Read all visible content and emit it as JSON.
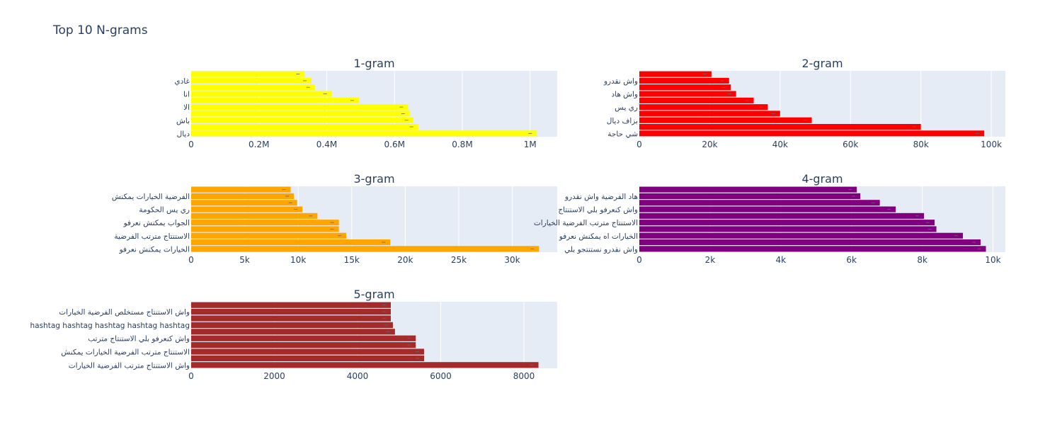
{
  "title": "Top 10 N-grams",
  "chart_data": [
    {
      "type": "bar",
      "orientation": "horizontal",
      "title": "1-gram",
      "color": "#ffff00",
      "categories": [
        "ديال",
        "",
        "باش",
        "",
        "الا",
        "",
        "انا",
        "",
        "غادي",
        ""
      ],
      "values": [
        1020000,
        670000,
        655000,
        645000,
        640000,
        495000,
        415000,
        365000,
        355000,
        335000
      ],
      "xlim": [
        0,
        1080000
      ],
      "xticks": [
        0,
        200000,
        400000,
        600000,
        800000,
        1000000
      ],
      "xtick_labels": [
        "0",
        "0.2M",
        "0.4M",
        "0.6M",
        "0.8M",
        "1M"
      ]
    },
    {
      "type": "bar",
      "orientation": "horizontal",
      "title": "2-gram",
      "color": "#ff0000",
      "categories": [
        "شي حاجة",
        "",
        "بزاف ديال",
        "",
        "ري يس",
        "",
        "واش هاد",
        "",
        "واش نقدرو",
        ""
      ],
      "values": [
        98000,
        80000,
        49000,
        40000,
        36500,
        32500,
        27500,
        26000,
        25500,
        20500
      ],
      "xlim": [
        0,
        104000
      ],
      "xticks": [
        0,
        20000,
        40000,
        60000,
        80000,
        100000
      ],
      "xtick_labels": [
        "0",
        "20k",
        "40k",
        "60k",
        "80k",
        "100k"
      ]
    },
    {
      "type": "bar",
      "orientation": "horizontal",
      "title": "3-gram",
      "color": "#ffa500",
      "categories": [
        "الخيارات يمكنش نعرفو",
        "",
        "الاستنتاج مترتب الفرضية",
        "",
        "الجواب يمكنش نعرفو",
        "",
        "ري يس الحكومة",
        "",
        "الفرضية الخيارات يمكنش",
        ""
      ],
      "values": [
        32500,
        18600,
        14500,
        13800,
        13800,
        11800,
        10400,
        9900,
        9600,
        9300
      ],
      "xlim": [
        0,
        34200
      ],
      "xticks": [
        0,
        5000,
        10000,
        15000,
        20000,
        25000,
        30000
      ],
      "xtick_labels": [
        "0",
        "5k",
        "10k",
        "15k",
        "20k",
        "25k",
        "30k"
      ]
    },
    {
      "type": "bar",
      "orientation": "horizontal",
      "title": "4-gram",
      "color": "#800080",
      "categories": [
        "واش نقدرو نستنتجو بلي",
        "",
        "الخيارات اه يمكنش نعرفو",
        "",
        "الاستنتاج مترتب الفرضية الخيارات",
        "",
        "واش كنعرفو بلي الاستنتاج",
        "",
        "هاد الفرضية واش نقدرو",
        ""
      ],
      "values": [
        9800,
        9650,
        9150,
        8400,
        8350,
        8050,
        7250,
        6800,
        6250,
        6150
      ],
      "xlim": [
        0,
        10350
      ],
      "xticks": [
        0,
        2000,
        4000,
        6000,
        8000,
        10000
      ],
      "xtick_labels": [
        "0",
        "2k",
        "4k",
        "6k",
        "8k",
        "10k"
      ]
    },
    {
      "type": "bar",
      "orientation": "horizontal",
      "title": "5-gram",
      "color": "#a52a2a",
      "categories": [
        "واش الاستنتاج مترتب الفرضية الخيارات",
        "",
        "الاستنتاج مترتب الفرضية الخيارات يمكنش",
        "",
        "واش كنعرفو بلي الاستنتاج مترتب",
        "",
        "hashtag hashtag hashtag hashtag hashtag",
        "",
        "واش الاستنتاج مستخلص الفرضية الخيارات",
        ""
      ],
      "values": [
        8350,
        5600,
        5600,
        5400,
        5400,
        4900,
        4850,
        4800,
        4800,
        4800
      ],
      "xlim": [
        0,
        8800
      ],
      "xticks": [
        0,
        2000,
        4000,
        6000,
        8000
      ],
      "xtick_labels": [
        "0",
        "2000",
        "4000",
        "6000",
        "8000"
      ]
    }
  ]
}
